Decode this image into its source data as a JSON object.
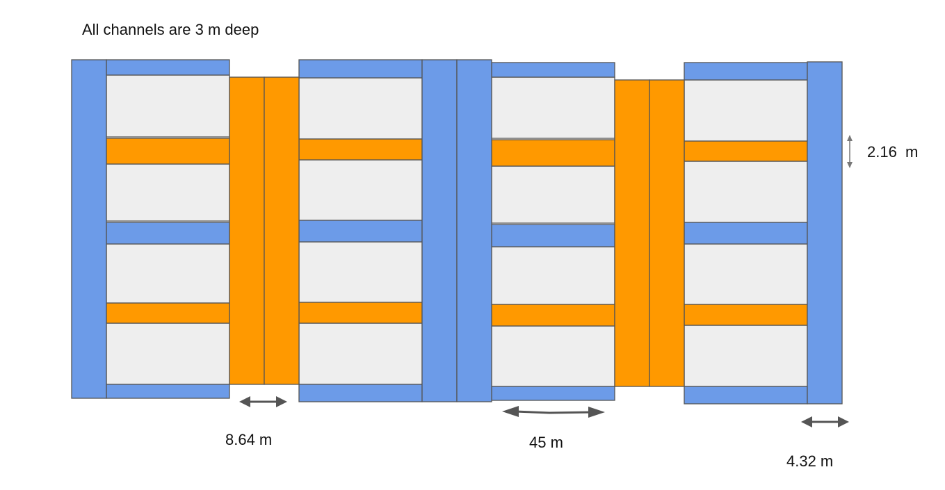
{
  "note": "All channels are 3 m deep",
  "dimensions": {
    "gap_width": "8.64 m",
    "pond_length": "45 m",
    "main_channel_width": "4.32 m",
    "cross_channel_width": "2.16  m"
  },
  "colors": {
    "blue_channel": "#6c9be8",
    "orange_channel": "#ff9900",
    "pond": "#eeeeee",
    "outline": "#555555",
    "arrow": "#555555"
  }
}
